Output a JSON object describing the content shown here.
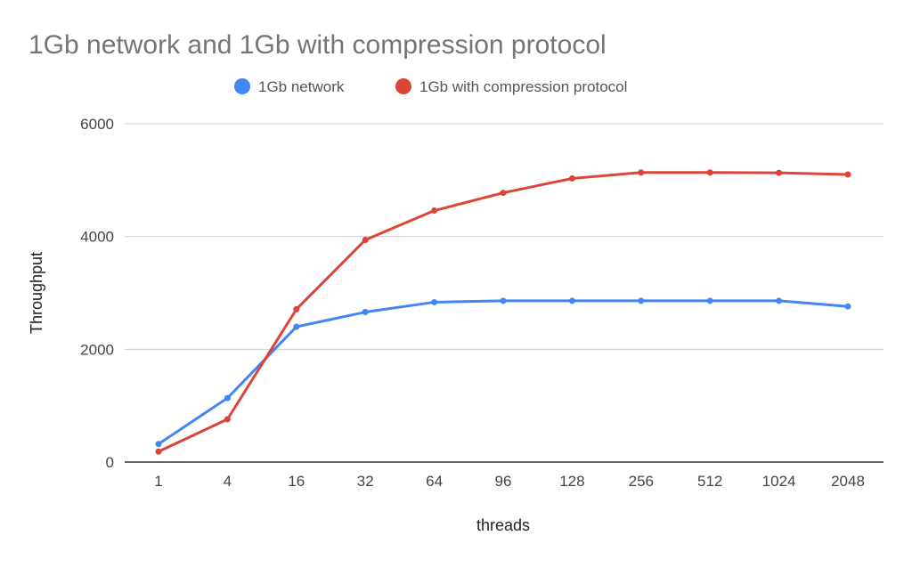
{
  "chart_data": {
    "type": "line",
    "title": "1Gb network and 1Gb with compression protocol",
    "xlabel": "threads",
    "ylabel": "Throughput",
    "categories": [
      "1",
      "4",
      "16",
      "32",
      "64",
      "96",
      "128",
      "256",
      "512",
      "1024",
      "2048"
    ],
    "ylim": [
      0,
      6000
    ],
    "yticks": [
      "0",
      "2000",
      "4000",
      "6000"
    ],
    "grid": true,
    "legend_position": "top",
    "series": [
      {
        "name": "1Gb network",
        "color": "#4285f4",
        "values": [
          320,
          1135,
          2400,
          2660,
          2835,
          2860,
          2860,
          2860,
          2860,
          2860,
          2760
        ]
      },
      {
        "name": "1Gb with compression protocol",
        "color": "#db4437",
        "values": [
          186,
          760,
          2710,
          3940,
          4460,
          4775,
          5030,
          5135,
          5135,
          5130,
          5100
        ]
      }
    ]
  }
}
